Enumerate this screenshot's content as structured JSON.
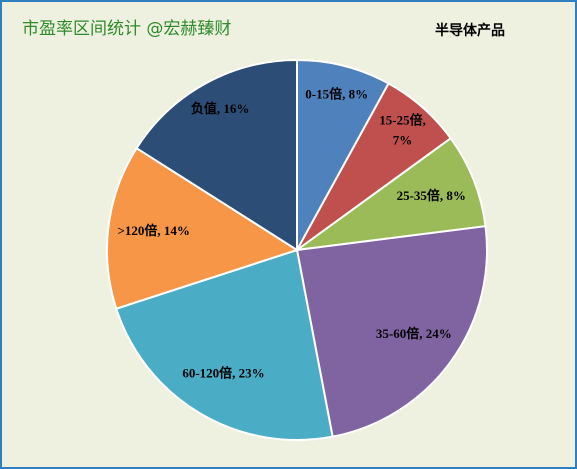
{
  "chart_data": {
    "type": "pie",
    "title": "市盈率区间统计 @宏赫臻财",
    "subtitle": "半导体产品",
    "categories": [
      "0-15倍",
      "15-25倍",
      "25-35倍",
      "35-60倍",
      "60-120倍",
      ">120倍",
      "负值"
    ],
    "values": [
      8,
      7,
      8,
      24,
      23,
      14,
      16
    ],
    "value_labels": [
      "0-15倍, 8%",
      "15-25倍, 7%",
      "25-35倍, 8%",
      "35-60倍, 24%",
      "60-120倍, 23%",
      ">120倍, 14%",
      "负值, 16%"
    ],
    "colors": [
      "#4f81bd",
      "#c0504d",
      "#9bbb59",
      "#8064a2",
      "#4bacc6",
      "#f79646",
      "#2c4d75"
    ]
  }
}
